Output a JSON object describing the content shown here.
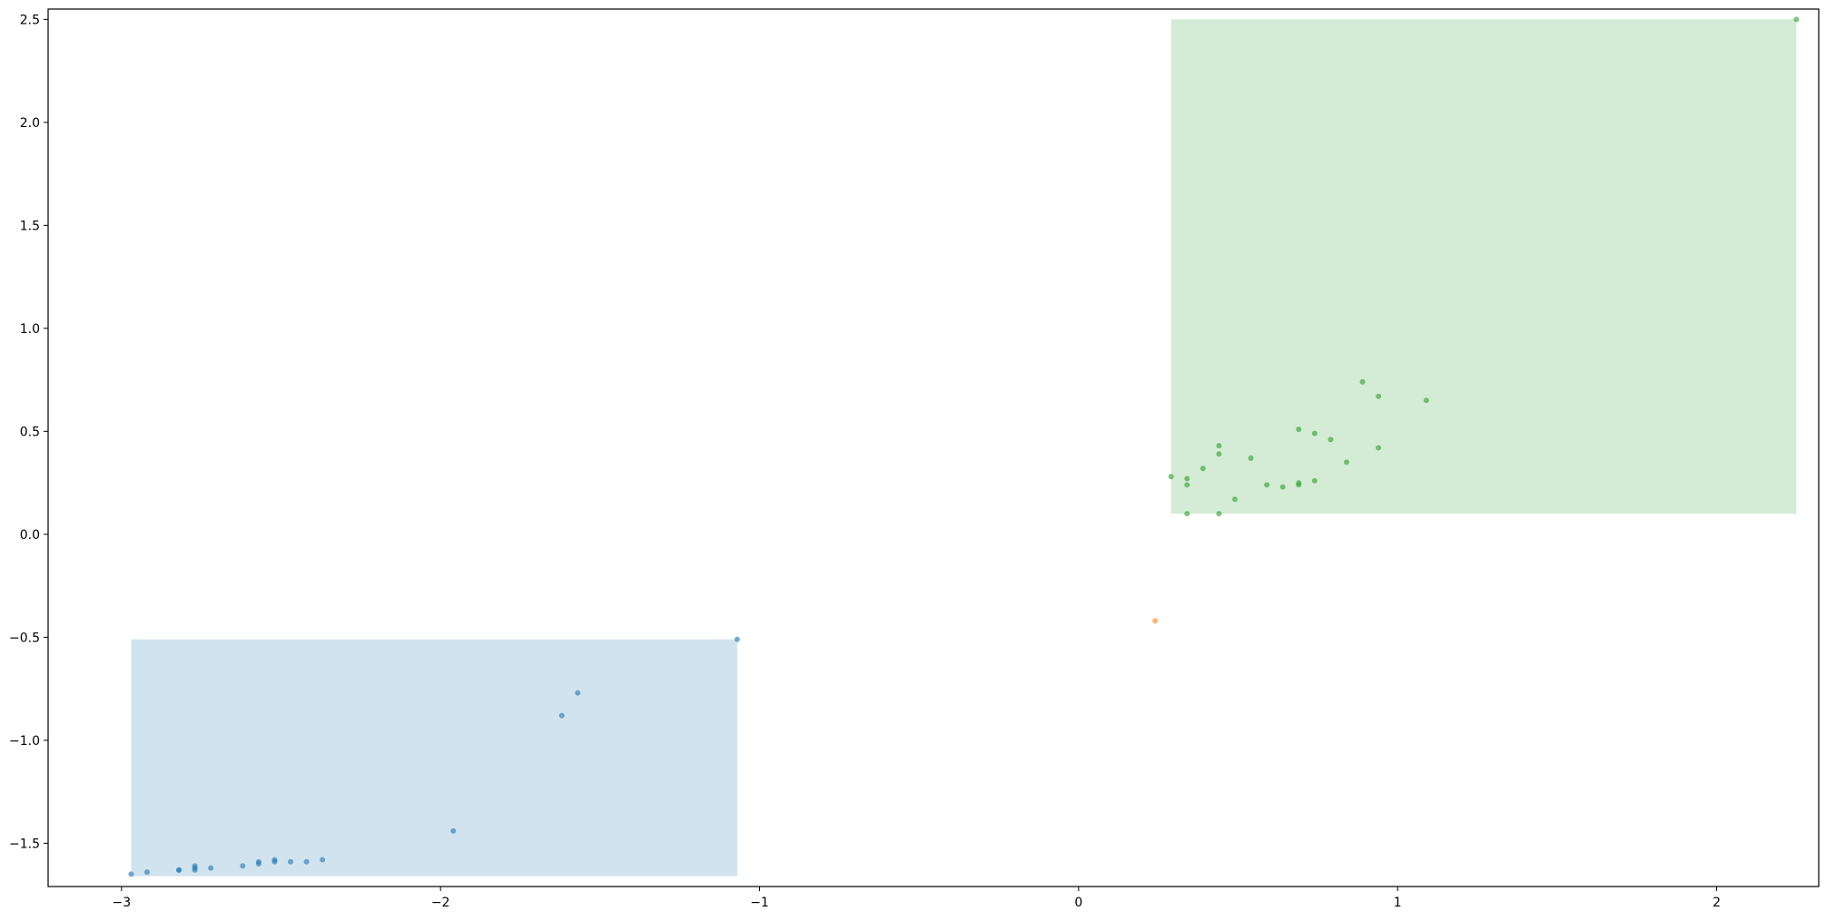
{
  "chart_data": {
    "type": "scatter",
    "title": "",
    "xlabel": "",
    "ylabel": "",
    "xlim": [
      -3.23,
      2.32
    ],
    "ylim": [
      -1.71,
      2.55
    ],
    "grid": false,
    "legend": "none",
    "x_ticks": [
      -3,
      -2,
      -1,
      0,
      1,
      2
    ],
    "x_tick_labels": [
      "−3",
      "−2",
      "−1",
      "0",
      "1",
      "2"
    ],
    "y_ticks": [
      -1.5,
      -1.0,
      -0.5,
      0.0,
      0.5,
      1.0,
      1.5,
      2.0,
      2.5
    ],
    "y_tick_labels": [
      "−1.5",
      "−1.0",
      "−0.5",
      "0.0",
      "0.5",
      "1.0",
      "1.5",
      "2.0",
      "2.5"
    ],
    "regions": [
      {
        "x": [
          -2.97,
          -1.07
        ],
        "y": [
          -1.66,
          -0.51
        ],
        "color": "#d1e3ef"
      },
      {
        "x": [
          0.29,
          2.25
        ],
        "y": [
          0.1,
          2.5
        ],
        "color": "#d4ecd5"
      }
    ],
    "series": [
      {
        "color": "#1f77b4",
        "points": [
          [
            -2.97,
            -1.65
          ],
          [
            -2.92,
            -1.64
          ],
          [
            -2.82,
            -1.63
          ],
          [
            -2.82,
            -1.63
          ],
          [
            -2.77,
            -1.62
          ],
          [
            -2.77,
            -1.63
          ],
          [
            -2.77,
            -1.61
          ],
          [
            -2.72,
            -1.62
          ],
          [
            -2.62,
            -1.61
          ],
          [
            -2.57,
            -1.6
          ],
          [
            -2.57,
            -1.59
          ],
          [
            -2.52,
            -1.59
          ],
          [
            -2.52,
            -1.58
          ],
          [
            -2.47,
            -1.59
          ],
          [
            -2.42,
            -1.59
          ],
          [
            -2.37,
            -1.58
          ],
          [
            -1.96,
            -1.44
          ],
          [
            -1.62,
            -0.88
          ],
          [
            -1.57,
            -0.77
          ],
          [
            -1.07,
            -0.51
          ]
        ]
      },
      {
        "color": "#ff7f0e",
        "points": [
          [
            0.24,
            -0.42
          ]
        ]
      },
      {
        "color": "#2ca02c",
        "points": [
          [
            0.29,
            0.28
          ],
          [
            0.34,
            0.27
          ],
          [
            0.34,
            0.24
          ],
          [
            0.34,
            0.1
          ],
          [
            0.39,
            0.32
          ],
          [
            0.44,
            0.43
          ],
          [
            0.44,
            0.39
          ],
          [
            0.44,
            0.1
          ],
          [
            0.49,
            0.17
          ],
          [
            0.54,
            0.37
          ],
          [
            0.59,
            0.24
          ],
          [
            0.64,
            0.23
          ],
          [
            0.69,
            0.25
          ],
          [
            0.69,
            0.24
          ],
          [
            0.69,
            0.51
          ],
          [
            0.74,
            0.49
          ],
          [
            0.74,
            0.26
          ],
          [
            0.79,
            0.46
          ],
          [
            0.84,
            0.35
          ],
          [
            0.89,
            0.74
          ],
          [
            0.94,
            0.67
          ],
          [
            0.94,
            0.42
          ],
          [
            1.09,
            0.65
          ],
          [
            2.25,
            2.5
          ]
        ]
      }
    ]
  }
}
